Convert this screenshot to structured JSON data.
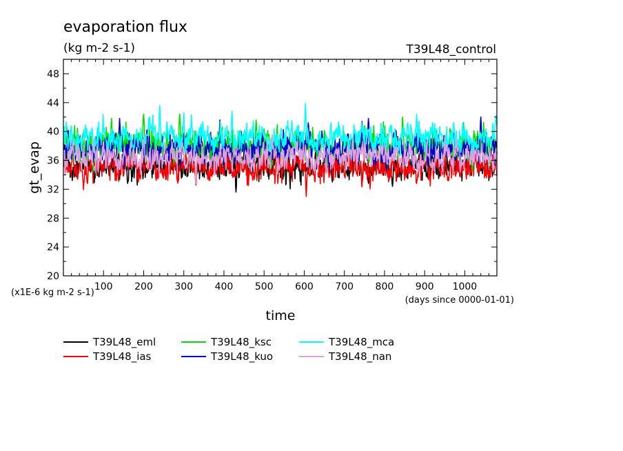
{
  "chart_data": {
    "type": "line",
    "title": "evaporation flux",
    "units": "(kg m-2 s-1)",
    "experiment": "T39L48_control",
    "xlabel": "time",
    "ylabel": "gt_evap",
    "y_scale_note": "(x1E-6 kg m-2 s-1)",
    "x_unit_note": "(days since 0000-01-01)",
    "xlim": [
      0,
      1080
    ],
    "ylim": [
      20,
      50
    ],
    "x_ticks": [
      100,
      200,
      300,
      400,
      500,
      600,
      700,
      800,
      900,
      1000
    ],
    "y_ticks": [
      20,
      24,
      28,
      32,
      36,
      40,
      44,
      48
    ],
    "legend_placement": "bottom-left",
    "series": [
      {
        "name": "T39L48_eml",
        "color": "#000000",
        "mean": 35.2,
        "amp": 1.6,
        "anchors": [
          [
            430,
            31.6
          ],
          [
            760,
            32.8
          ],
          [
            820,
            32.4
          ],
          [
            160,
            32.8
          ],
          [
            670,
            33.0
          ],
          [
            1060,
            33.2
          ]
        ]
      },
      {
        "name": "T39L48_ias",
        "color": "#ff0000",
        "mean": 35.0,
        "amp": 1.5,
        "anchors": [
          [
            605,
            31.0
          ],
          [
            330,
            32.6
          ],
          [
            880,
            32.8
          ],
          [
            60,
            32.8
          ],
          [
            960,
            33.2
          ]
        ]
      },
      {
        "name": "T39L48_ksc",
        "color": "#00e000",
        "mean": 38.0,
        "amp": 1.9,
        "anchors": [
          [
            200,
            42.4
          ],
          [
            290,
            42.4
          ],
          [
            845,
            42.0
          ],
          [
            120,
            41.8
          ],
          [
            480,
            41.6
          ]
        ]
      },
      {
        "name": "T39L48_kuo",
        "color": "#0000cc",
        "mean": 37.8,
        "amp": 1.8,
        "anchors": [
          [
            140,
            41.8
          ],
          [
            390,
            41.6
          ],
          [
            1040,
            42.0
          ],
          [
            760,
            41.8
          ],
          [
            610,
            41.2
          ]
        ]
      },
      {
        "name": "T39L48_mca",
        "color": "#00ffff",
        "mean": 39.2,
        "amp": 1.6,
        "anchors": [
          [
            240,
            43.6
          ],
          [
            603,
            43.9
          ],
          [
            420,
            42.8
          ],
          [
            1078,
            42.2
          ],
          [
            300,
            42.6
          ],
          [
            880,
            42.4
          ]
        ]
      },
      {
        "name": "T39L48_nan",
        "color": "#e0a0e0",
        "mean": 36.4,
        "amp": 1.5,
        "anchors": [
          [
            330,
            32.8
          ],
          [
            520,
            39.6
          ],
          [
            200,
            39.2
          ],
          [
            980,
            39.0
          ],
          [
            720,
            38.8
          ]
        ]
      }
    ]
  }
}
